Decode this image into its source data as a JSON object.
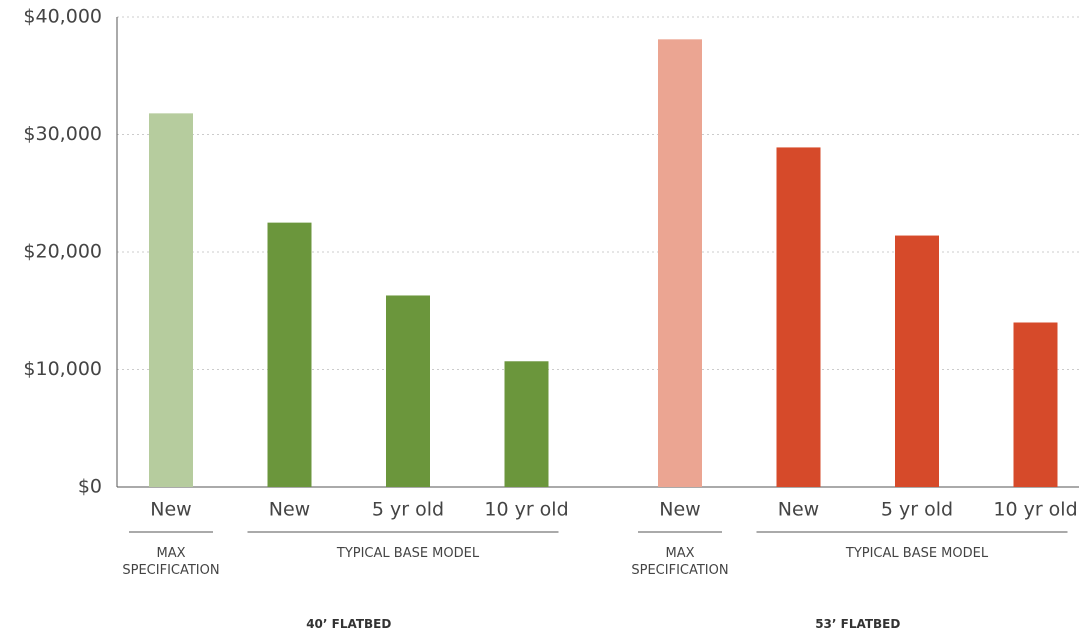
{
  "chart_data": {
    "type": "bar",
    "ylim": [
      0,
      40000
    ],
    "yticks": [
      {
        "value": 0,
        "label": "$0"
      },
      {
        "value": 10000,
        "label": "$10,000"
      },
      {
        "value": 20000,
        "label": "$20,000"
      },
      {
        "value": 30000,
        "label": "$30,000"
      },
      {
        "value": 40000,
        "label": "$40,000"
      }
    ],
    "grid": true,
    "groups": [
      {
        "name": "40’ FLATBED",
        "subgroups": [
          {
            "label": "MAX SPECIFICATION",
            "color": "#b6cc9e",
            "categories": [
              "New"
            ],
            "values": [
              31800
            ]
          },
          {
            "label": "TYPICAL BASE MODEL",
            "color": "#6b963c",
            "categories": [
              "New",
              "5 yr old",
              "10 yr old"
            ],
            "values": [
              22500,
              16300,
              10700
            ]
          }
        ]
      },
      {
        "name": "53’ FLATBED",
        "subgroups": [
          {
            "label": "MAX SPECIFICATION",
            "color": "#eba592",
            "categories": [
              "New"
            ],
            "values": [
              38100
            ]
          },
          {
            "label": "TYPICAL BASE MODEL",
            "color": "#d64a2a",
            "categories": [
              "New",
              "5 yr old",
              "10 yr old"
            ],
            "values": [
              28900,
              21400,
              14000
            ]
          }
        ]
      }
    ]
  }
}
